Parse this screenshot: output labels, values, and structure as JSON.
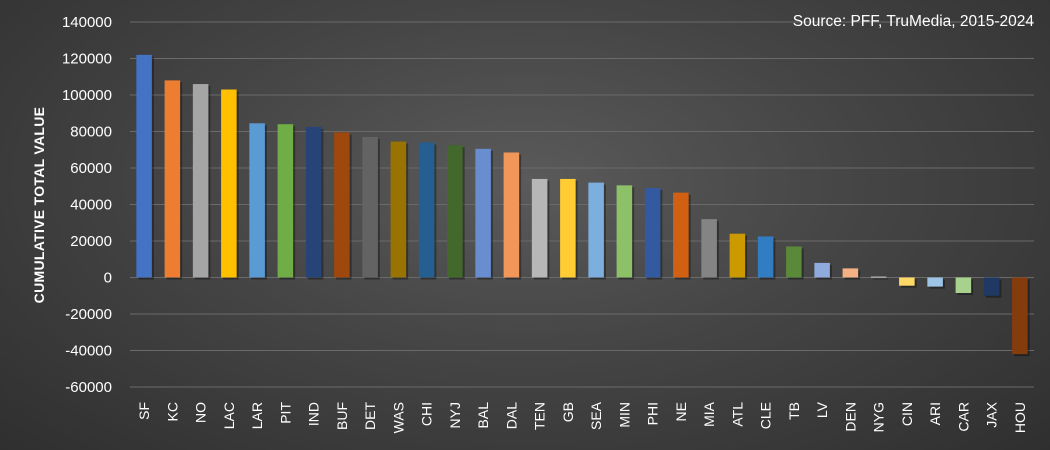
{
  "chart_data": {
    "type": "bar",
    "annotation": "Source: PFF, TruMedia, 2015-2024",
    "ylabel": "CUMULATIVE TOTAL VALUE",
    "xlabel": "",
    "ylim": [
      -60000,
      140000
    ],
    "yticks": [
      140000,
      120000,
      100000,
      80000,
      60000,
      40000,
      20000,
      0,
      -20000,
      -40000,
      -60000
    ],
    "grid": true,
    "legend": "none",
    "categories": [
      "SF",
      "KC",
      "NO",
      "LAC",
      "LAR",
      "PIT",
      "IND",
      "BUF",
      "DET",
      "WAS",
      "CHI",
      "NYJ",
      "BAL",
      "DAL",
      "TEN",
      "GB",
      "SEA",
      "MIN",
      "PHI",
      "NE",
      "MIA",
      "ATL",
      "CLE",
      "TB",
      "LV",
      "DEN",
      "NYG",
      "CIN",
      "ARI",
      "CAR",
      "JAX",
      "HOU"
    ],
    "values": [
      122000,
      108000,
      106000,
      103000,
      84500,
      84000,
      82500,
      79500,
      77000,
      74500,
      74000,
      72500,
      70500,
      68500,
      54000,
      54000,
      52000,
      50500,
      49000,
      46500,
      32000,
      24000,
      22500,
      17000,
      8000,
      5000,
      500,
      -4500,
      -5000,
      -8500,
      -10000,
      -42000
    ],
    "colors": [
      "#4472c4",
      "#ed7d31",
      "#a5a5a5",
      "#ffc000",
      "#5b9bd5",
      "#70ad47",
      "#264478",
      "#9e480e",
      "#636363",
      "#997300",
      "#255e91",
      "#43682b",
      "#698ed0",
      "#f1975a",
      "#b7b7b7",
      "#ffcd33",
      "#7cafdd",
      "#8cc168",
      "#335aa1",
      "#d26012",
      "#848484",
      "#cc9a00",
      "#327dc2",
      "#5a8a39",
      "#8faadc",
      "#f4b183",
      "#c9c9c9",
      "#ffd966",
      "#9dc3e6",
      "#a9d18e",
      "#203864",
      "#843c0c"
    ]
  }
}
